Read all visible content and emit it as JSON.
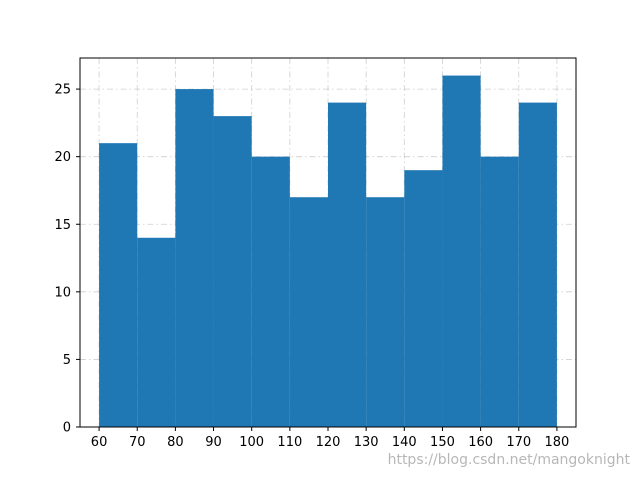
{
  "chart_data": {
    "type": "bar",
    "bin_edges": [
      60,
      70,
      80,
      90,
      100,
      110,
      120,
      130,
      140,
      150,
      160,
      170,
      180
    ],
    "values": [
      21,
      14,
      25,
      23,
      20,
      17,
      24,
      17,
      19,
      26,
      20,
      24
    ],
    "xlim": [
      55,
      185
    ],
    "ylim": [
      0,
      27.3
    ],
    "xticks": [
      60,
      70,
      80,
      90,
      100,
      110,
      120,
      130,
      140,
      150,
      160,
      170,
      180
    ],
    "yticks": [
      0,
      5,
      10,
      15,
      20,
      25
    ],
    "grid": true,
    "bar_color": "#1f77b4",
    "title": "",
    "xlabel": "",
    "ylabel": ""
  },
  "watermark": "https://blog.csdn.net/mangoknight"
}
